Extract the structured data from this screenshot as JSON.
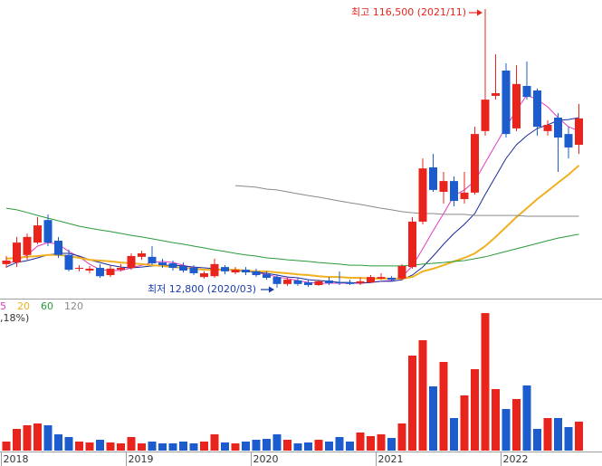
{
  "chart_data": {
    "type": "candlestick",
    "categories": [
      "2018",
      null,
      null,
      null,
      null,
      null,
      null,
      null,
      null,
      null,
      null,
      null,
      "2019",
      null,
      null,
      null,
      null,
      null,
      null,
      null,
      null,
      null,
      null,
      null,
      "2020",
      null,
      null,
      null,
      null,
      null,
      null,
      null,
      null,
      null,
      null,
      null,
      "2021",
      null,
      null,
      null,
      null,
      null,
      null,
      null,
      null,
      null,
      null,
      null,
      "2022",
      null,
      null,
      null,
      null,
      null,
      null,
      null
    ],
    "open": [
      21600,
      22200,
      25000,
      29600,
      38000,
      30300,
      25000,
      19900,
      19200,
      20200,
      17500,
      19500,
      20200,
      24300,
      24300,
      22200,
      21900,
      20900,
      20200,
      16800,
      17100,
      20500,
      18500,
      19500,
      18900,
      17800,
      16800,
      14200,
      15500,
      14800,
      13800,
      15500,
      14800,
      14800,
      14500,
      14800,
      16200,
      16500,
      16200,
      20500,
      37400,
      57600,
      48500,
      52500,
      45800,
      48200,
      71100,
      84200,
      93600,
      72100,
      87900,
      86200,
      71100,
      76100,
      70000,
      66000
    ],
    "high": [
      24600,
      31700,
      33000,
      39100,
      40100,
      31700,
      27000,
      21200,
      20900,
      21600,
      21200,
      21600,
      25600,
      26600,
      28300,
      23600,
      22900,
      22200,
      21200,
      18900,
      23600,
      21200,
      20500,
      20500,
      19900,
      18900,
      17800,
      16800,
      16500,
      15800,
      15800,
      16800,
      18900,
      15800,
      16500,
      17500,
      18200,
      17100,
      21600,
      39100,
      60900,
      62600,
      55900,
      54200,
      55900,
      72700,
      116500,
      99700,
      96300,
      95600,
      97000,
      86900,
      75100,
      77800,
      72700,
      81200
    ],
    "low": [
      20200,
      20500,
      23200,
      29000,
      28300,
      23900,
      18900,
      18900,
      18200,
      16500,
      16800,
      18900,
      19500,
      23200,
      21200,
      20200,
      19200,
      18500,
      17500,
      16200,
      16500,
      17800,
      17800,
      17500,
      16800,
      15800,
      12800,
      13500,
      13500,
      13100,
      13500,
      13800,
      13800,
      13800,
      13800,
      14500,
      15800,
      15200,
      15500,
      19900,
      36400,
      48500,
      44100,
      43100,
      44100,
      47500,
      69400,
      82800,
      68700,
      71100,
      82800,
      69400,
      69400,
      55900,
      60900,
      62600
    ],
    "close": [
      22900,
      29600,
      31700,
      36000,
      29600,
      25000,
      19500,
      20200,
      19900,
      17100,
      19900,
      20200,
      24600,
      25600,
      21900,
      21200,
      20200,
      19200,
      18200,
      18200,
      21600,
      18900,
      19500,
      18500,
      17500,
      16500,
      14200,
      15800,
      14200,
      13800,
      15200,
      14500,
      14500,
      14200,
      15200,
      16800,
      16800,
      15800,
      20900,
      37400,
      57200,
      49200,
      52500,
      45100,
      48200,
      70000,
      82800,
      85200,
      70000,
      88600,
      83800,
      72700,
      73400,
      68700,
      65000,
      75800
    ],
    "up_color": "#e8241c",
    "down_color": "#1c5ccc",
    "ylim": [
      8760,
      119870
    ],
    "lines": [
      {
        "name": "5",
        "color": "#e03cc0",
        "values": [
          21600,
          22900,
          25000,
          28300,
          29600,
          29000,
          26300,
          24300,
          21600,
          19500,
          19200,
          19200,
          20200,
          21200,
          22200,
          22600,
          22200,
          21200,
          20200,
          19500,
          19500,
          19500,
          19500,
          19200,
          18500,
          17800,
          16800,
          16200,
          15500,
          14800,
          14500,
          14500,
          14500,
          14500,
          14500,
          14800,
          15200,
          15500,
          16800,
          20900,
          27300,
          34000,
          40400,
          47100,
          49200,
          52500,
          59300,
          66000,
          72700,
          78800,
          84500,
          82800,
          80100,
          76100,
          72700,
          71100
        ]
      },
      {
        "color": "#1a2a9c",
        "values": [
          20500,
          22200,
          22900,
          23900,
          25000,
          25600,
          25600,
          24600,
          23200,
          22200,
          21200,
          20500,
          20200,
          20500,
          20900,
          21200,
          21200,
          20900,
          20500,
          20200,
          19900,
          19500,
          19200,
          18900,
          18500,
          18200,
          17500,
          16800,
          16500,
          15800,
          15500,
          15200,
          14800,
          14800,
          14500,
          14800,
          15200,
          15200,
          15800,
          17500,
          20500,
          24600,
          29000,
          33000,
          36400,
          40400,
          47500,
          54200,
          60900,
          66000,
          69400,
          72100,
          73400,
          75100,
          75400,
          76100
        ]
      },
      {
        "name": "20",
        "color": "#f0b020",
        "values": [
          23600,
          23900,
          24300,
          24600,
          25000,
          25000,
          24600,
          23900,
          23200,
          22900,
          22600,
          22200,
          21900,
          21600,
          21200,
          20900,
          20500,
          20200,
          19900,
          19500,
          19500,
          19500,
          19500,
          19200,
          18900,
          18900,
          18500,
          18200,
          17800,
          17500,
          17100,
          16800,
          16800,
          16500,
          16500,
          16200,
          16200,
          16200,
          16200,
          16800,
          18900,
          19900,
          21200,
          22600,
          23900,
          25600,
          28300,
          31700,
          35400,
          39100,
          42400,
          45800,
          48800,
          51900,
          54900,
          58300
        ]
      },
      {
        "name": "60",
        "color": "#2a9a3a",
        "values": [
          42400,
          41800,
          40800,
          39700,
          38700,
          37700,
          36700,
          35700,
          35000,
          34300,
          33700,
          33000,
          32300,
          31700,
          31000,
          30300,
          29600,
          29000,
          28300,
          27600,
          26900,
          26300,
          25600,
          25000,
          24600,
          23900,
          23600,
          23200,
          22900,
          22600,
          22200,
          21900,
          21600,
          21200,
          21200,
          20900,
          20900,
          20900,
          20900,
          21200,
          21600,
          21900,
          22200,
          22600,
          22900,
          23600,
          24300,
          25300,
          26300,
          27300,
          28300,
          29300,
          30300,
          31300,
          32000,
          32700
        ]
      },
      {
        "name": "120",
        "color": "#8a8a8a",
        "values": [
          null,
          null,
          null,
          null,
          null,
          null,
          null,
          null,
          null,
          null,
          null,
          null,
          null,
          null,
          null,
          null,
          null,
          null,
          null,
          null,
          null,
          null,
          50800,
          50500,
          50200,
          49500,
          49200,
          48500,
          47800,
          47100,
          46500,
          45800,
          45100,
          44400,
          43800,
          43100,
          42400,
          41800,
          41100,
          40700,
          40400,
          40400,
          40100,
          40100,
          40100,
          39700,
          39700,
          39700,
          39700,
          39700,
          39400,
          39400,
          39400,
          39400,
          39400,
          39400
        ]
      }
    ],
    "volume": {
      "ylim": [
        0,
        160
      ],
      "values": [
        10,
        24,
        28,
        30,
        28,
        18,
        15,
        10,
        9,
        12,
        9,
        8,
        15,
        8,
        10,
        8,
        8,
        10,
        8,
        10,
        18,
        9,
        8,
        10,
        12,
        13,
        18,
        12,
        8,
        9,
        12,
        10,
        15,
        10,
        20,
        16,
        18,
        14,
        30,
        105,
        122,
        71,
        98,
        36,
        61,
        90,
        152,
        68,
        46,
        57,
        72,
        24,
        36,
        36,
        26,
        32
      ]
    },
    "volume_label": ",18%)",
    "high_annotation": "최고 116,500 (2021/11)",
    "low_annotation": "최저 12,800 (2020/03)"
  }
}
